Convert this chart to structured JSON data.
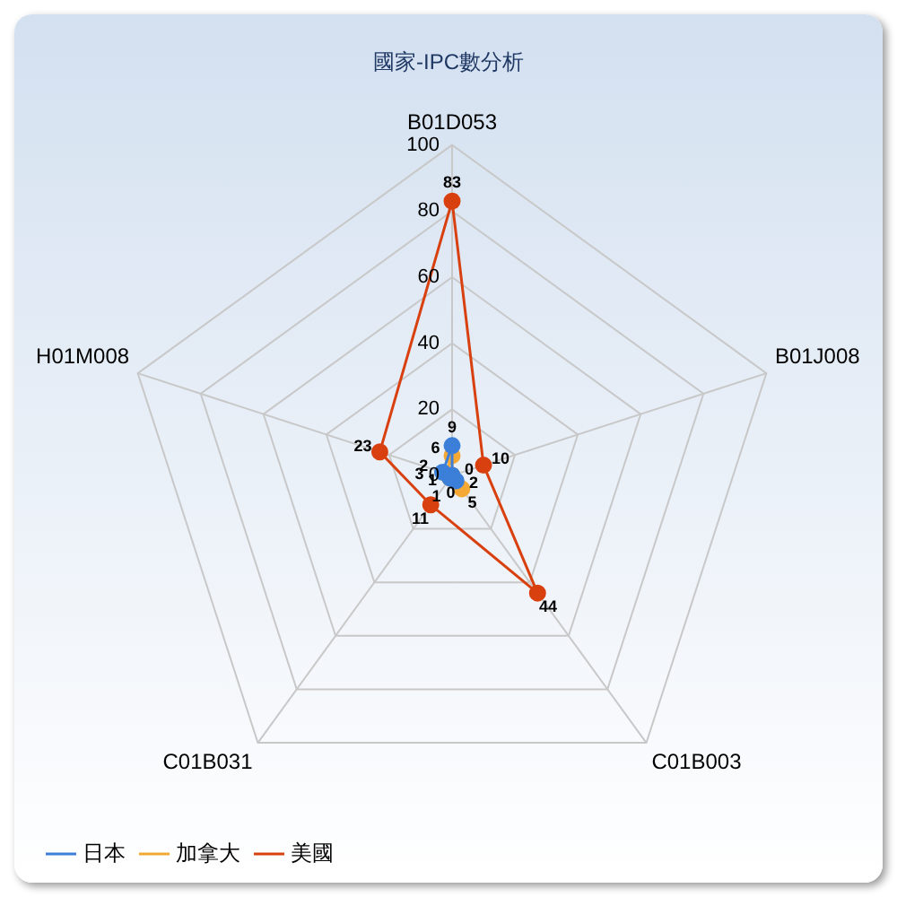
{
  "chart_data": {
    "type": "radar",
    "title": "國家-IPC數分析",
    "categories": [
      "B01D053",
      "B01J008",
      "C01B003",
      "C01B031",
      "H01M008"
    ],
    "series": [
      {
        "name": "日本",
        "color": "#3b7fd9",
        "values": [
          9,
          0,
          2,
          1,
          3
        ]
      },
      {
        "name": "加拿大",
        "color": "#f5a935",
        "values": [
          6,
          0,
          5,
          1,
          2
        ]
      },
      {
        "name": "美國",
        "color": "#d9400f",
        "values": [
          83,
          10,
          44,
          11,
          23
        ]
      }
    ],
    "ylim": [
      0,
      100
    ],
    "yticks": [
      0,
      20,
      40,
      60,
      80,
      100
    ],
    "grid": true,
    "legend": "bottom left",
    "marker": "circle",
    "data_labels": true
  }
}
